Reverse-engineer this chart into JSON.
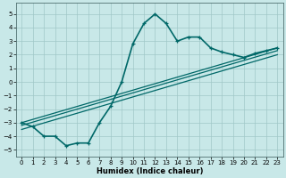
{
  "xlabel": "Humidex (Indice chaleur)",
  "background_color": "#c8e8e8",
  "grid_color": "#a0c8c8",
  "line_color": "#006868",
  "xlim": [
    -0.5,
    23.5
  ],
  "ylim": [
    -5.5,
    5.8
  ],
  "yticks": [
    -5,
    -4,
    -3,
    -2,
    -1,
    0,
    1,
    2,
    3,
    4,
    5
  ],
  "xticks": [
    0,
    1,
    2,
    3,
    4,
    5,
    6,
    7,
    8,
    9,
    10,
    11,
    12,
    13,
    14,
    15,
    16,
    17,
    18,
    19,
    20,
    21,
    22,
    23
  ],
  "series": [
    {
      "x": [
        0,
        1,
        2,
        3,
        4,
        5,
        6,
        7,
        8,
        9,
        10,
        11,
        12,
        13,
        14,
        15,
        16,
        17,
        18,
        19,
        20,
        21,
        22,
        23
      ],
      "y": [
        -3.0,
        -3.3,
        -4.0,
        -4.0,
        -4.7,
        -4.5,
        -4.5,
        -3.0,
        -1.8,
        0.0,
        2.8,
        4.3,
        5.0,
        4.3,
        3.0,
        3.3,
        3.3,
        2.5,
        2.2,
        2.0,
        1.8,
        2.1,
        2.3,
        2.5
      ],
      "linewidth": 1.2,
      "marker": true
    },
    {
      "x": [
        0,
        23
      ],
      "y": [
        -3.0,
        2.5
      ],
      "linewidth": 0.9,
      "marker": false
    },
    {
      "x": [
        0,
        23
      ],
      "y": [
        -3.2,
        2.3
      ],
      "linewidth": 0.9,
      "marker": false
    },
    {
      "x": [
        0,
        23
      ],
      "y": [
        -3.5,
        2.0
      ],
      "linewidth": 0.9,
      "marker": false
    }
  ]
}
